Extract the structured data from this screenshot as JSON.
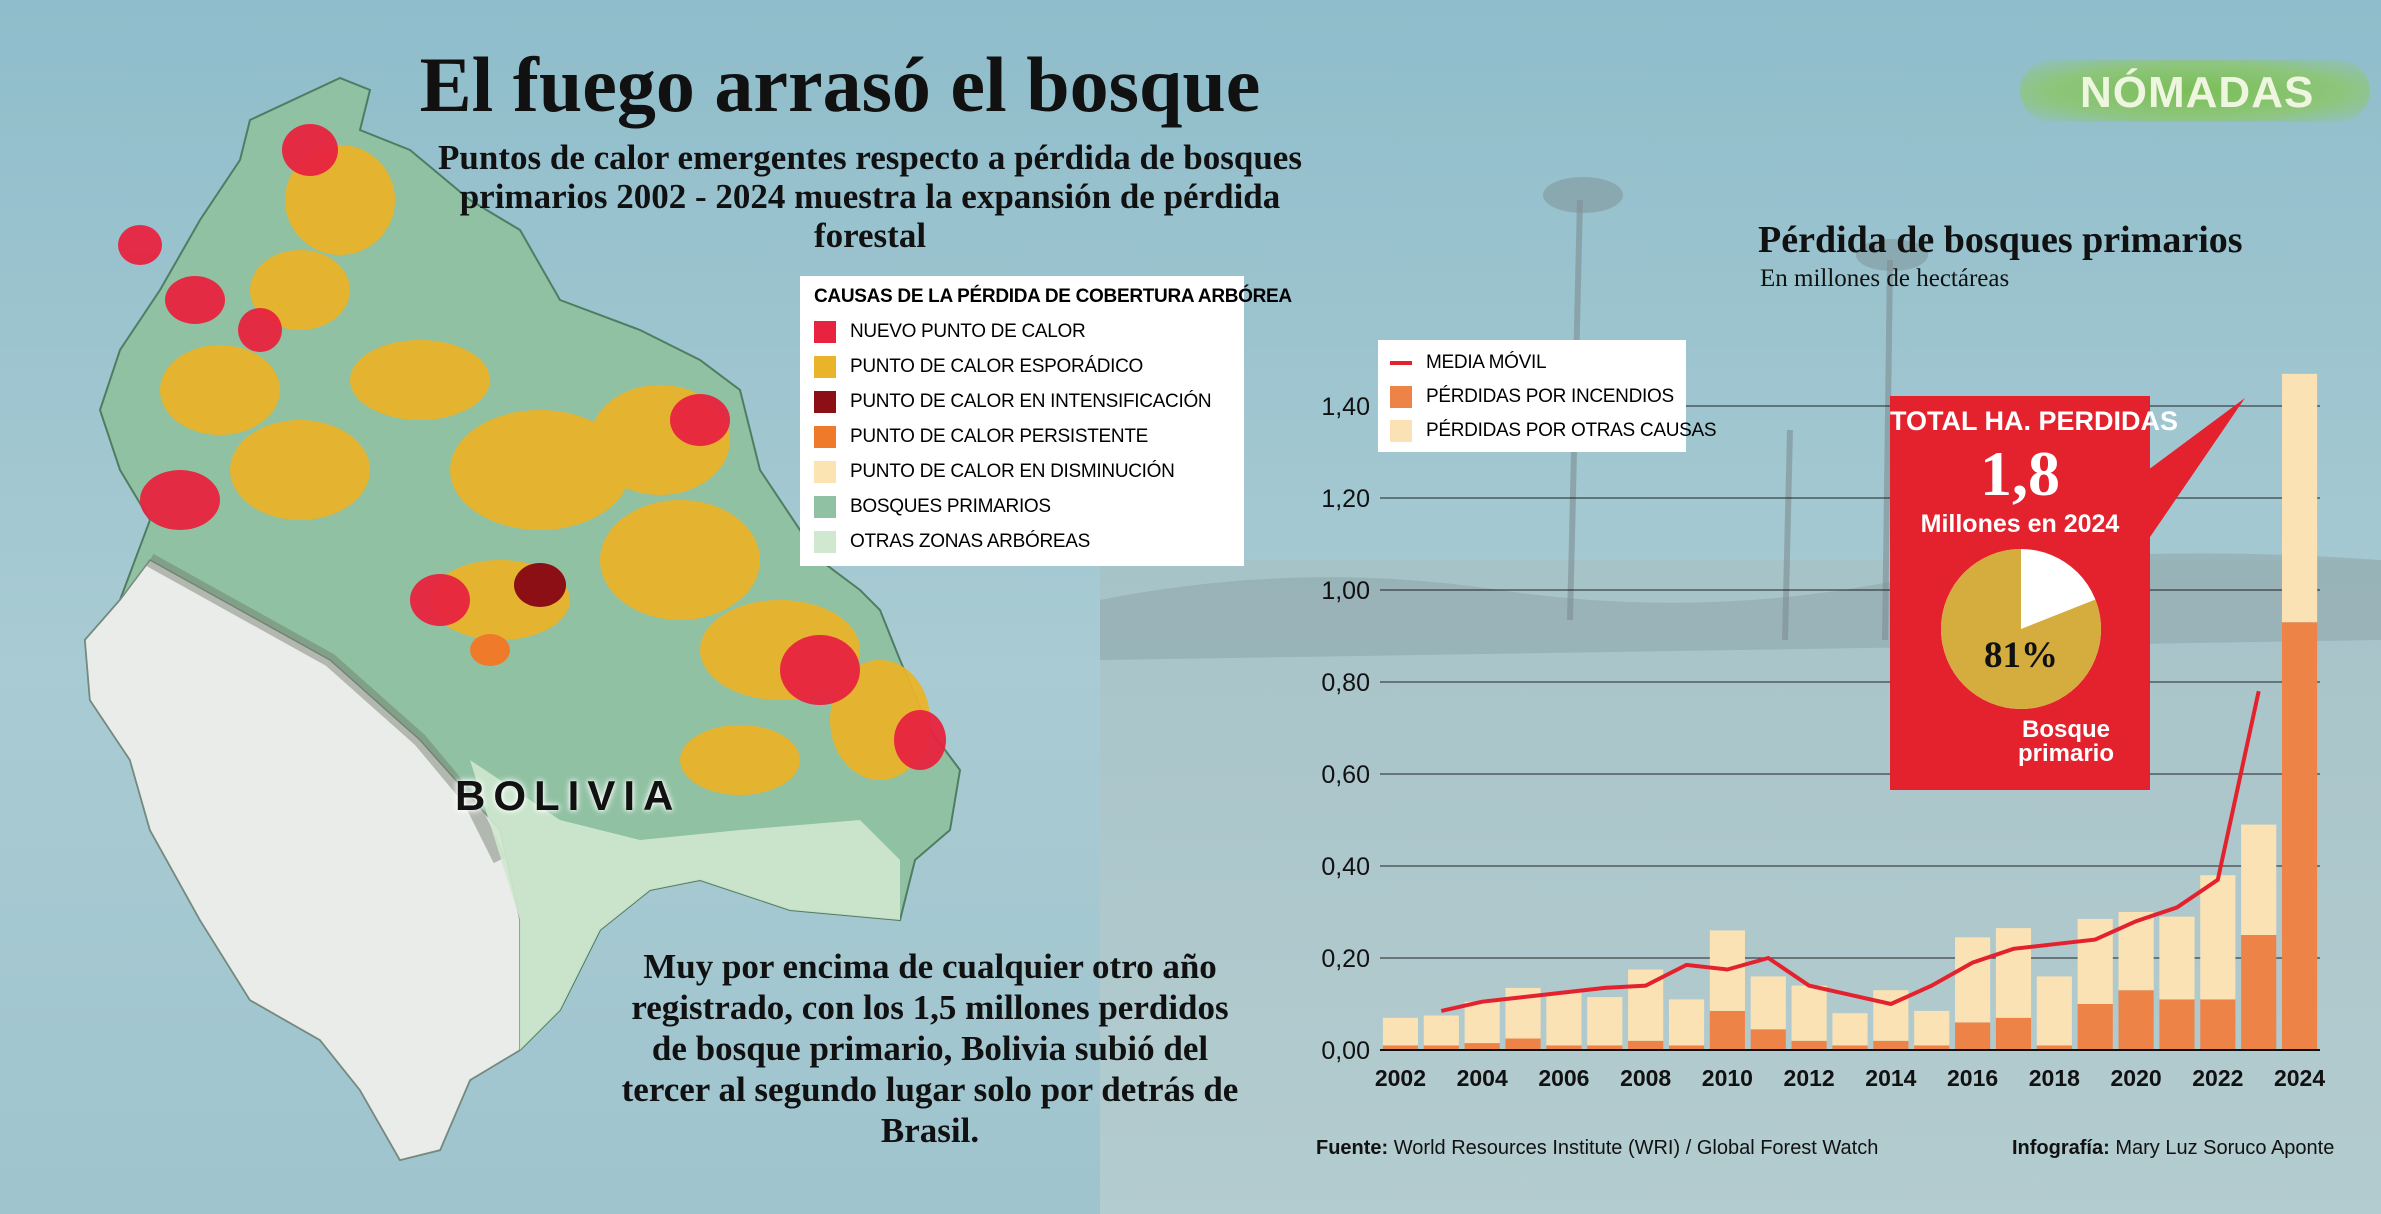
{
  "title": "El fuego arrasó el bosque",
  "subtitle": "Puntos de calor emergentes respecto a pérdida de bosques primarios 2002 - 2024 muestra la expansión de pérdida forestal",
  "logo": "NÓMADAS",
  "map": {
    "country_label": "BOLIVIA",
    "legend_title": "CAUSAS DE LA PÉRDIDA DE COBERTURA ARBÓREA",
    "legend": [
      {
        "label": "NUEVO PUNTO DE CALOR",
        "color": "#e8233f"
      },
      {
        "label": "PUNTO DE CALOR ESPORÁDICO",
        "color": "#e9b32a"
      },
      {
        "label": "PUNTO DE CALOR EN INTENSIFICACIÓN",
        "color": "#8b0f14"
      },
      {
        "label": "PUNTO DE CALOR PERSISTENTE",
        "color": "#ef7a2a"
      },
      {
        "label": "PUNTO DE CALOR EN DISMINUCIÓN",
        "color": "#fbe3b2"
      },
      {
        "label": "BOSQUES PRIMARIOS",
        "color": "#8fc1a2"
      },
      {
        "label": "OTRAS ZONAS ARBÓREAS",
        "color": "#cfe8cf"
      }
    ]
  },
  "note": "Muy por encima de cualquier otro año registrado, con los 1,5 millones perdidos de bosque primario, Bolivia subió del tercer al segundo lugar solo por detrás de Brasil.",
  "chart_data": {
    "type": "bar",
    "title": "Pérdida de bosques primarios",
    "subtitle": "En millones de hectáreas",
    "x": [
      2002,
      2003,
      2004,
      2005,
      2006,
      2007,
      2008,
      2009,
      2010,
      2011,
      2012,
      2013,
      2014,
      2015,
      2016,
      2017,
      2018,
      2019,
      2020,
      2021,
      2022,
      2023,
      2024
    ],
    "x_tick_labels": [
      "2002",
      "2004",
      "2006",
      "2008",
      "2010",
      "2012",
      "2014",
      "2016",
      "2018",
      "2020",
      "2022",
      "2024"
    ],
    "y_tick_labels": [
      "0,00",
      "0,20",
      "0,40",
      "0,60",
      "0,80",
      "1,00",
      "1,20",
      "1,40"
    ],
    "ylim": [
      0,
      1.5
    ],
    "stacked": true,
    "series": [
      {
        "name": "PÉRDIDAS POR INCENDIOS",
        "color": "#ee8348",
        "values": [
          0.01,
          0.01,
          0.015,
          0.025,
          0.01,
          0.01,
          0.02,
          0.01,
          0.085,
          0.045,
          0.02,
          0.01,
          0.02,
          0.01,
          0.06,
          0.07,
          0.01,
          0.1,
          0.13,
          0.11,
          0.11,
          0.25,
          0.93
        ]
      },
      {
        "name": "PÉRDIDAS POR OTRAS CAUSAS",
        "color": "#fbe2b4",
        "values": [
          0.06,
          0.065,
          0.09,
          0.11,
          0.115,
          0.105,
          0.155,
          0.1,
          0.175,
          0.115,
          0.12,
          0.07,
          0.11,
          0.075,
          0.185,
          0.195,
          0.15,
          0.185,
          0.17,
          0.18,
          0.27,
          0.24,
          0.54
        ]
      },
      {
        "name": "MEDIA MÓVIL",
        "type": "line",
        "color": "#e3222e",
        "values": [
          null,
          0.085,
          0.105,
          0.115,
          0.125,
          0.135,
          0.14,
          0.185,
          0.175,
          0.2,
          0.14,
          0.12,
          0.1,
          0.14,
          0.19,
          0.22,
          0.23,
          0.24,
          0.28,
          0.31,
          0.37,
          0.78,
          null
        ]
      }
    ],
    "legend_placement": "top-left",
    "grid": true,
    "callout": {
      "heading": "TOTAL HA. PERDIDAS",
      "value": "1,8",
      "unit": "Millones  en 2024",
      "pie": {
        "value": 0.81,
        "label": "81%",
        "caption": "Bosque primario",
        "color": "#d4ad3e",
        "rest_color": "#ffffff"
      }
    }
  },
  "footer": {
    "source_label": "Fuente:",
    "source": "World Resources Institute (WRI) / Global Forest Watch",
    "credit_label": "Infografía:",
    "credit": "Mary Luz Soruco Aponte"
  }
}
